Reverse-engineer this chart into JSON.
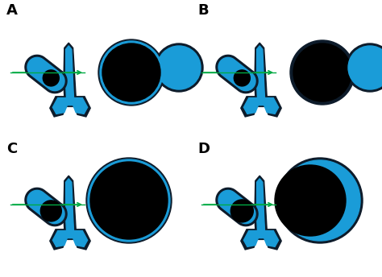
{
  "bg_color": "#ffffff",
  "blue": "#1a9cd8",
  "dark_blue": "#0d1b2a",
  "black": "#000000",
  "green_arrow": "#00aa44",
  "label_fontsize": 13,
  "labels": [
    "A",
    "B",
    "C",
    "D"
  ]
}
